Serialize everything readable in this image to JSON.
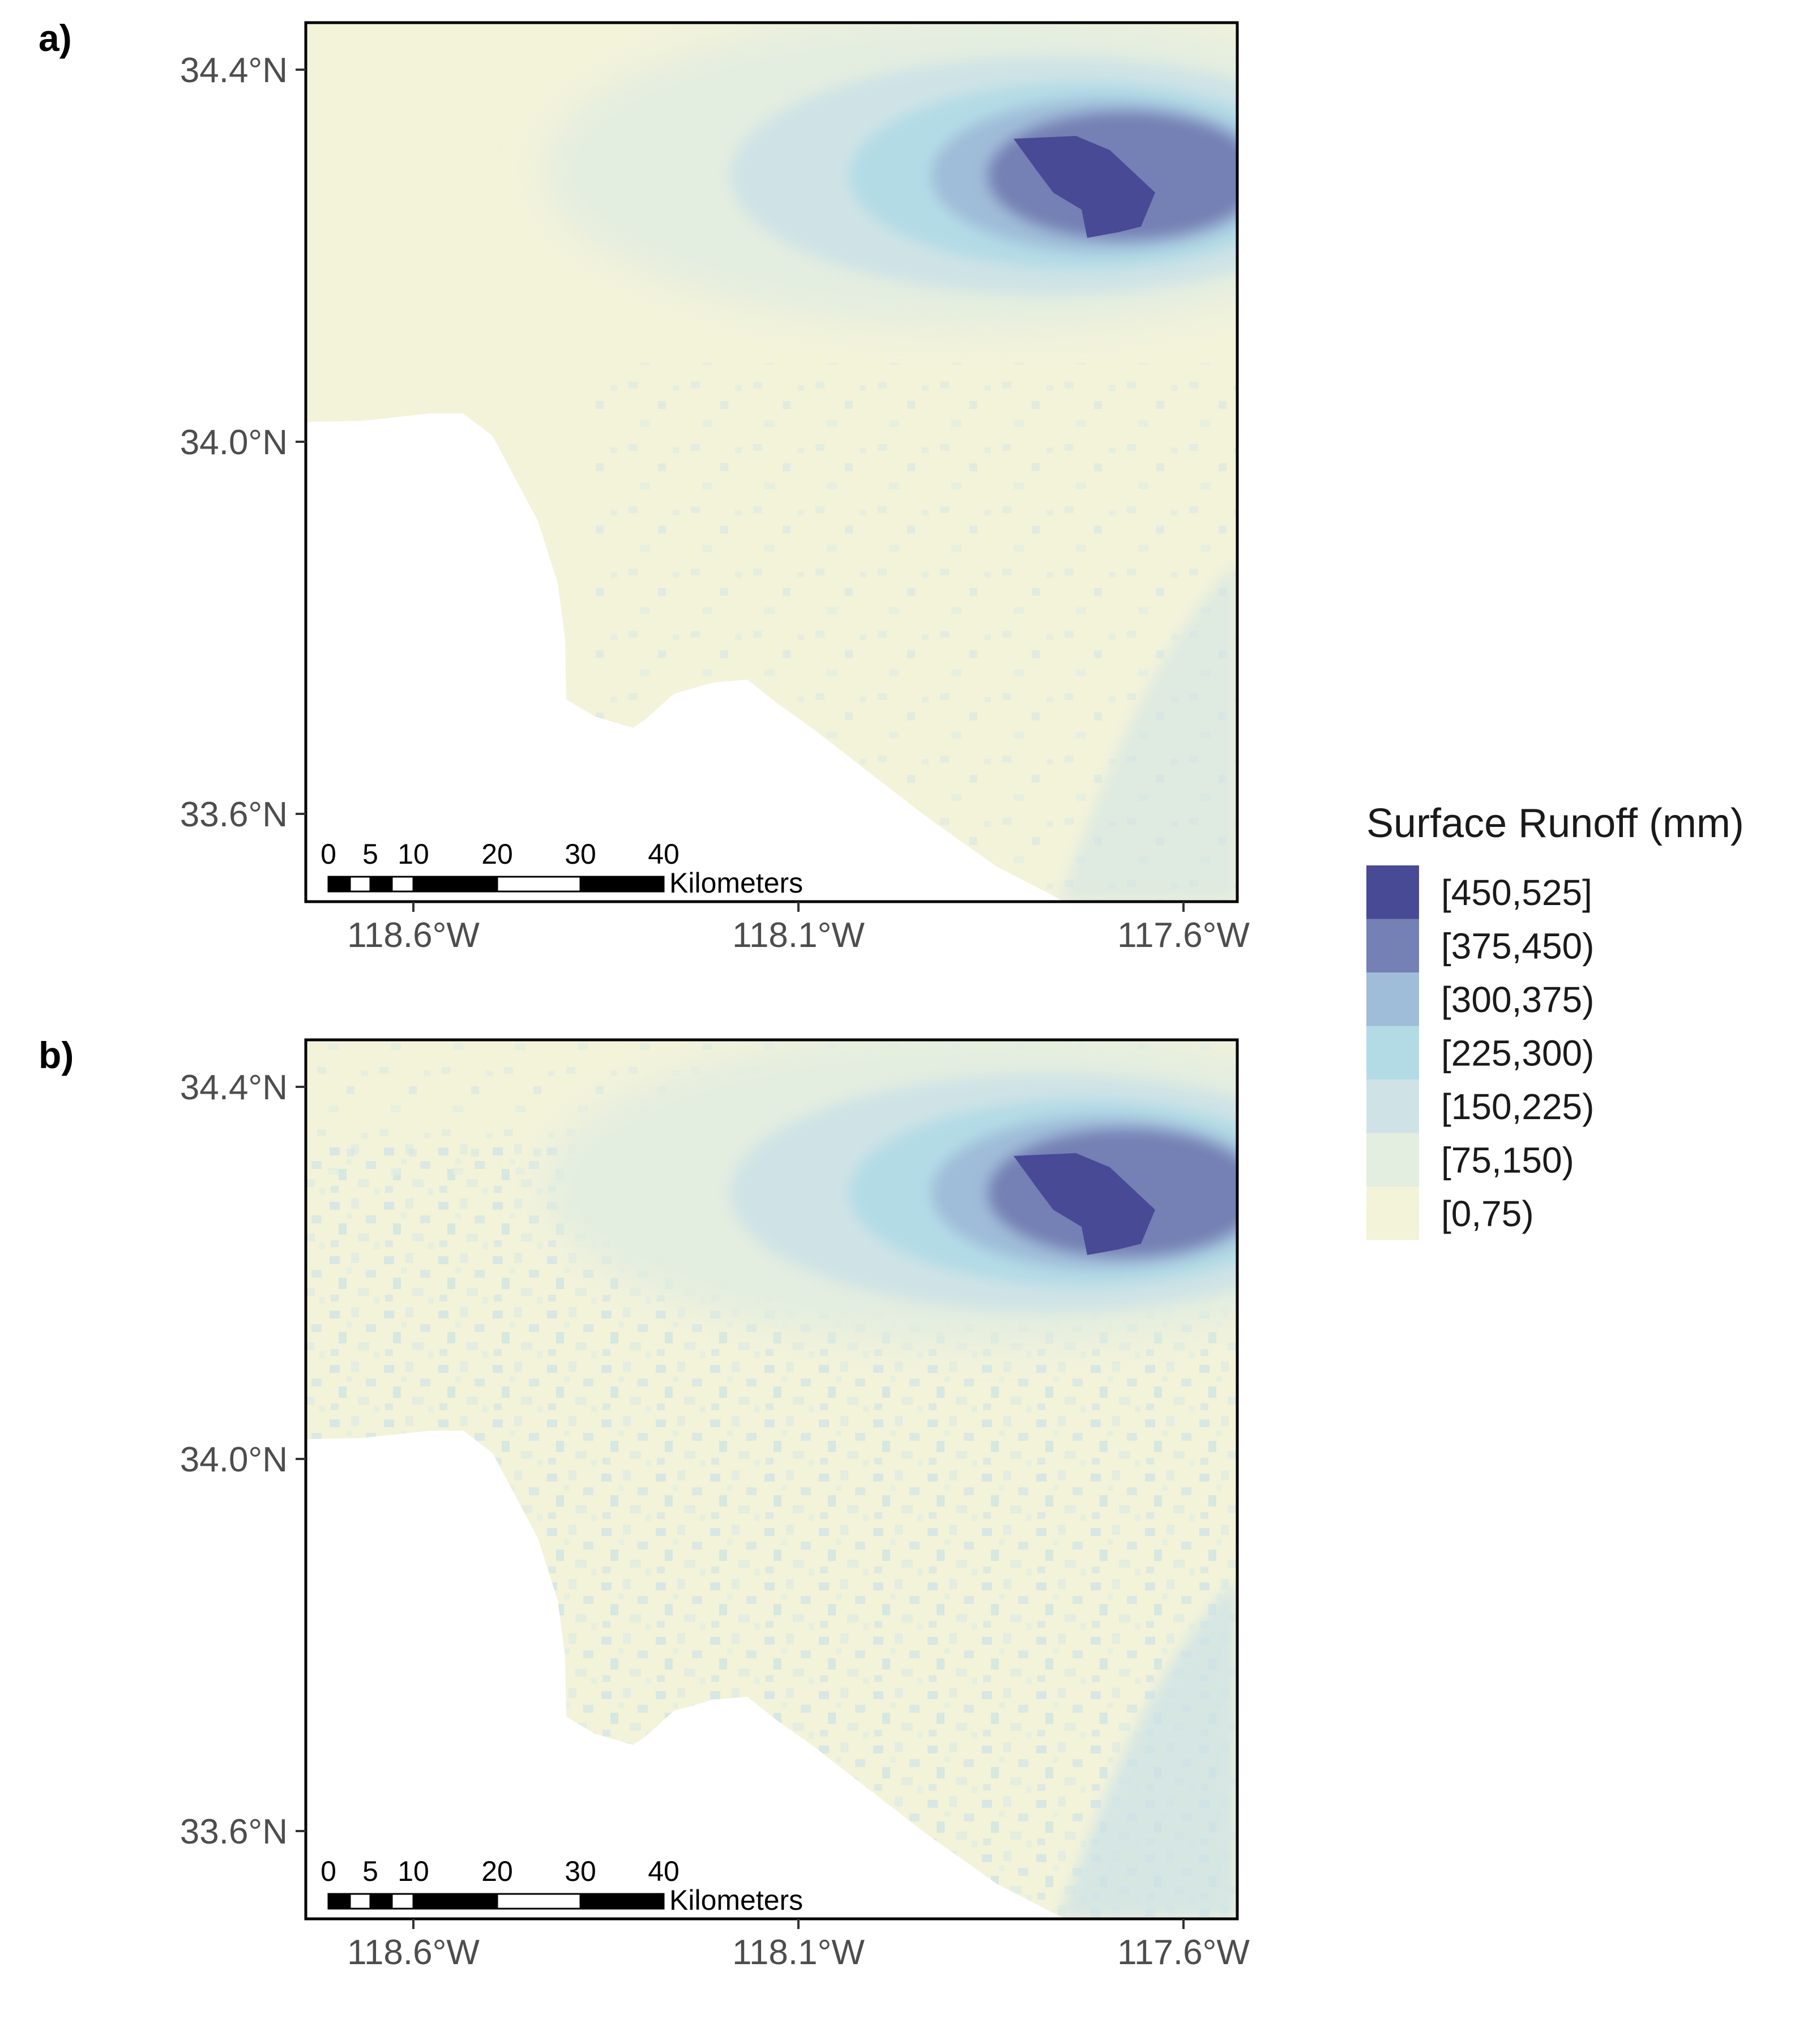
{
  "colors": {
    "land": "#f3f3da",
    "water": "#ffffff",
    "frame": "#000000",
    "classes": [
      "#f3f3da",
      "#e3ede0",
      "#cfe3e6",
      "#b3dbe6",
      "#9fbcd8",
      "#7580b4",
      "#484a96"
    ]
  },
  "panels": [
    {
      "id": "a",
      "label": "a)"
    },
    {
      "id": "b",
      "label": "b)"
    }
  ],
  "axes": {
    "y_ticks": [
      "34.4°N",
      "34.0°N",
      "33.6°N"
    ],
    "x_ticks": [
      "118.6°W",
      "118.1°W",
      "117.6°W"
    ]
  },
  "scale_bar": {
    "ticks": [
      "0",
      "5",
      "10",
      "20",
      "30",
      "40"
    ],
    "unit": "Kilometers"
  },
  "legend": {
    "title": "Surface Runoff (mm)",
    "classes": [
      "[450,525]",
      "[375,450)",
      "[300,375)",
      "[225,300)",
      "[150,225)",
      "[75,150)",
      "[0,75)"
    ]
  },
  "chart_data": {
    "type": "heatmap",
    "title": "",
    "xlabel": "",
    "ylabel": "",
    "x_ticks": [
      "118.6°W",
      "118.1°W",
      "117.6°W"
    ],
    "y_ticks": [
      "34.4°N",
      "34.0°N",
      "33.6°N"
    ],
    "xlim": [
      -118.75,
      -117.55
    ],
    "ylim": [
      33.54,
      34.45
    ],
    "legend_position": "right",
    "legend_title": "Surface Runoff (mm)",
    "bins": [
      "[0,75)",
      "[75,150)",
      "[150,225)",
      "[225,300)",
      "[300,375)",
      "[375,450)",
      "[450,525]"
    ],
    "peak_location": [
      -117.75,
      34.27
    ]
  }
}
